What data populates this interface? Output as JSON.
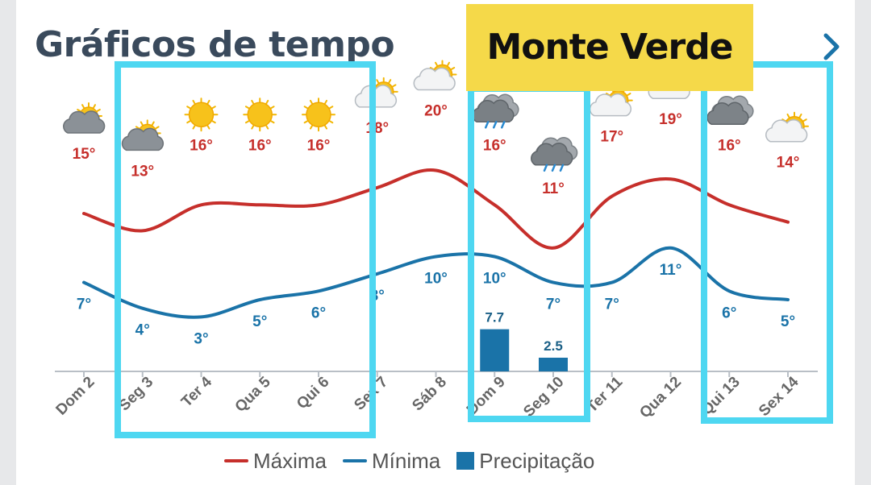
{
  "header": {
    "title": "Gráficos de tempo",
    "location": "Monte Verde"
  },
  "legend": {
    "max_label": "Máxima",
    "min_label": "Mínima",
    "precip_label": "Precipitação"
  },
  "colors": {
    "max": "#c62f2b",
    "min": "#1a73a8",
    "precip": "#1a73a8",
    "highlight": "#4ed7f1",
    "banner": "#f5d949"
  },
  "chart_data": {
    "type": "line",
    "categories": [
      "Dom 2",
      "Seg 3",
      "Ter 4",
      "Qua 5",
      "Qui 6",
      "Sex 7",
      "Sáb 8",
      "Dom 9",
      "Seg 10",
      "Ter 11",
      "Qua 12",
      "Qui 13",
      "Sex 14"
    ],
    "icons": [
      "cloudy-sun-icon",
      "cloudy-sun-icon",
      "sun-icon",
      "sun-icon",
      "sun-icon",
      "partly-cloudy-icon",
      "partly-cloudy-icon",
      "rain-icon",
      "rain-icon",
      "partly-cloudy-icon",
      "partly-cloudy-icon",
      "cloudy-icon",
      "partly-cloudy-icon"
    ],
    "series": [
      {
        "name": "Máxima",
        "type": "line",
        "unit": "°",
        "values": [
          15,
          13,
          16,
          16,
          16,
          18,
          20,
          16,
          11,
          17,
          19,
          16,
          14
        ]
      },
      {
        "name": "Mínima",
        "type": "line",
        "unit": "°",
        "values": [
          7,
          4,
          3,
          5,
          6,
          8,
          10,
          10,
          7,
          7,
          11,
          6,
          5
        ]
      },
      {
        "name": "Precipitação",
        "type": "bar",
        "values": [
          null,
          null,
          null,
          null,
          null,
          null,
          null,
          7.7,
          2.5,
          null,
          null,
          null,
          null
        ]
      }
    ],
    "precip_labels": [
      "",
      "",
      "",
      "",
      "",
      "",
      "",
      "7.7",
      "2.5",
      "",
      "",
      "",
      ""
    ],
    "legend_position": "bottom",
    "grid": false
  }
}
